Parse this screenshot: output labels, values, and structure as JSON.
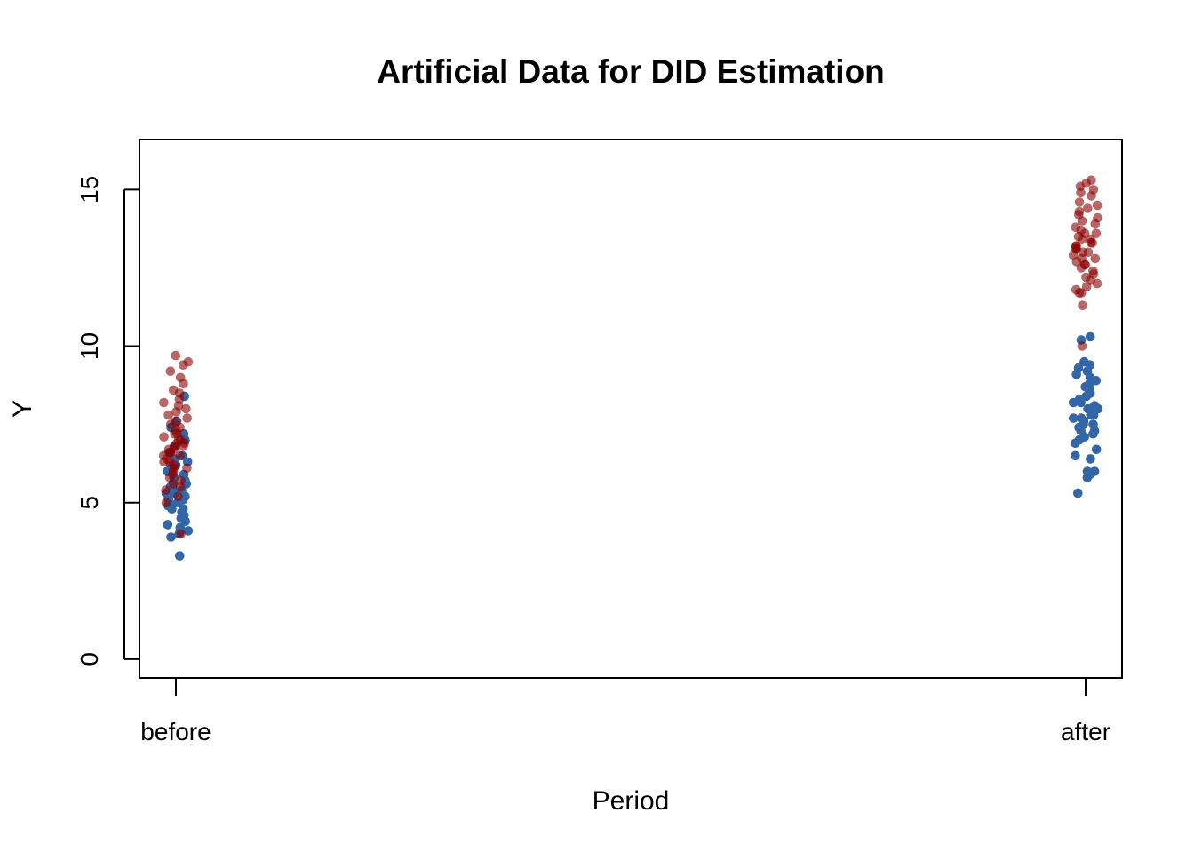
{
  "chart_data": {
    "type": "scatter",
    "title": "Artificial Data for DID Estimation",
    "xlabel": "Period",
    "ylabel": "Y",
    "x_categories": [
      "before",
      "after"
    ],
    "ylim": [
      -0.6,
      16.6
    ],
    "y_ticks": [
      0,
      5,
      10,
      15
    ],
    "y_tick_labels": [
      "0",
      "5",
      "10",
      "15"
    ],
    "grid": false,
    "legend": "none",
    "point_groups": [
      {
        "category": "before",
        "color": "#3366A6",
        "opacity": 1.0,
        "y": [
          3.3,
          3.9,
          4.0,
          4.1,
          4.1,
          4.2,
          4.3,
          4.4,
          4.5,
          4.6,
          4.7,
          4.8,
          4.8,
          4.9,
          5.0,
          5.0,
          5.1,
          5.1,
          5.2,
          5.2,
          5.3,
          5.3,
          5.4,
          5.5,
          5.5,
          5.6,
          5.6,
          5.7,
          5.8,
          5.8,
          5.9,
          6.0,
          6.0,
          6.1,
          6.2,
          6.2,
          6.3,
          6.4,
          6.5,
          6.6,
          6.8,
          7.0,
          7.2,
          7.4,
          7.6,
          8.4
        ]
      },
      {
        "category": "before",
        "color": "#8B0000",
        "opacity": 0.6,
        "y": [
          4.0,
          5.0,
          5.2,
          5.4,
          5.5,
          5.6,
          5.7,
          5.8,
          5.9,
          6.0,
          6.1,
          6.1,
          6.2,
          6.3,
          6.3,
          6.4,
          6.5,
          6.5,
          6.6,
          6.6,
          6.7,
          6.7,
          6.8,
          6.8,
          6.9,
          6.9,
          7.0,
          7.0,
          7.1,
          7.2,
          7.2,
          7.3,
          7.4,
          7.5,
          7.6,
          7.7,
          7.8,
          7.9,
          8.0,
          8.1,
          8.2,
          8.3,
          8.5,
          8.6,
          8.8,
          9.0,
          9.2,
          9.4,
          9.5,
          9.7
        ]
      },
      {
        "category": "after",
        "color": "#3366A6",
        "opacity": 1.0,
        "y": [
          5.3,
          5.8,
          5.9,
          6.0,
          6.0,
          6.4,
          6.5,
          6.7,
          6.9,
          7.0,
          7.1,
          7.2,
          7.3,
          7.3,
          7.4,
          7.5,
          7.5,
          7.6,
          7.7,
          7.7,
          7.8,
          7.8,
          7.9,
          8.0,
          8.0,
          8.1,
          8.2,
          8.2,
          8.3,
          8.4,
          8.5,
          8.5,
          8.6,
          8.7,
          8.8,
          8.9,
          9.0,
          9.1,
          9.2,
          9.3,
          9.4,
          9.5,
          10.2,
          10.3
        ]
      },
      {
        "category": "after",
        "color": "#8B0000",
        "opacity": 0.6,
        "y": [
          10.0,
          11.3,
          11.7,
          11.7,
          11.8,
          11.9,
          12.0,
          12.1,
          12.2,
          12.3,
          12.4,
          12.5,
          12.6,
          12.6,
          12.7,
          12.8,
          12.8,
          12.9,
          13.0,
          13.0,
          13.1,
          13.1,
          13.2,
          13.2,
          13.3,
          13.3,
          13.4,
          13.4,
          13.5,
          13.6,
          13.6,
          13.7,
          13.8,
          13.9,
          14.0,
          14.1,
          14.2,
          14.3,
          14.4,
          14.5,
          14.6,
          14.8,
          14.9,
          15.0,
          15.1,
          15.2,
          15.3
        ]
      }
    ]
  }
}
